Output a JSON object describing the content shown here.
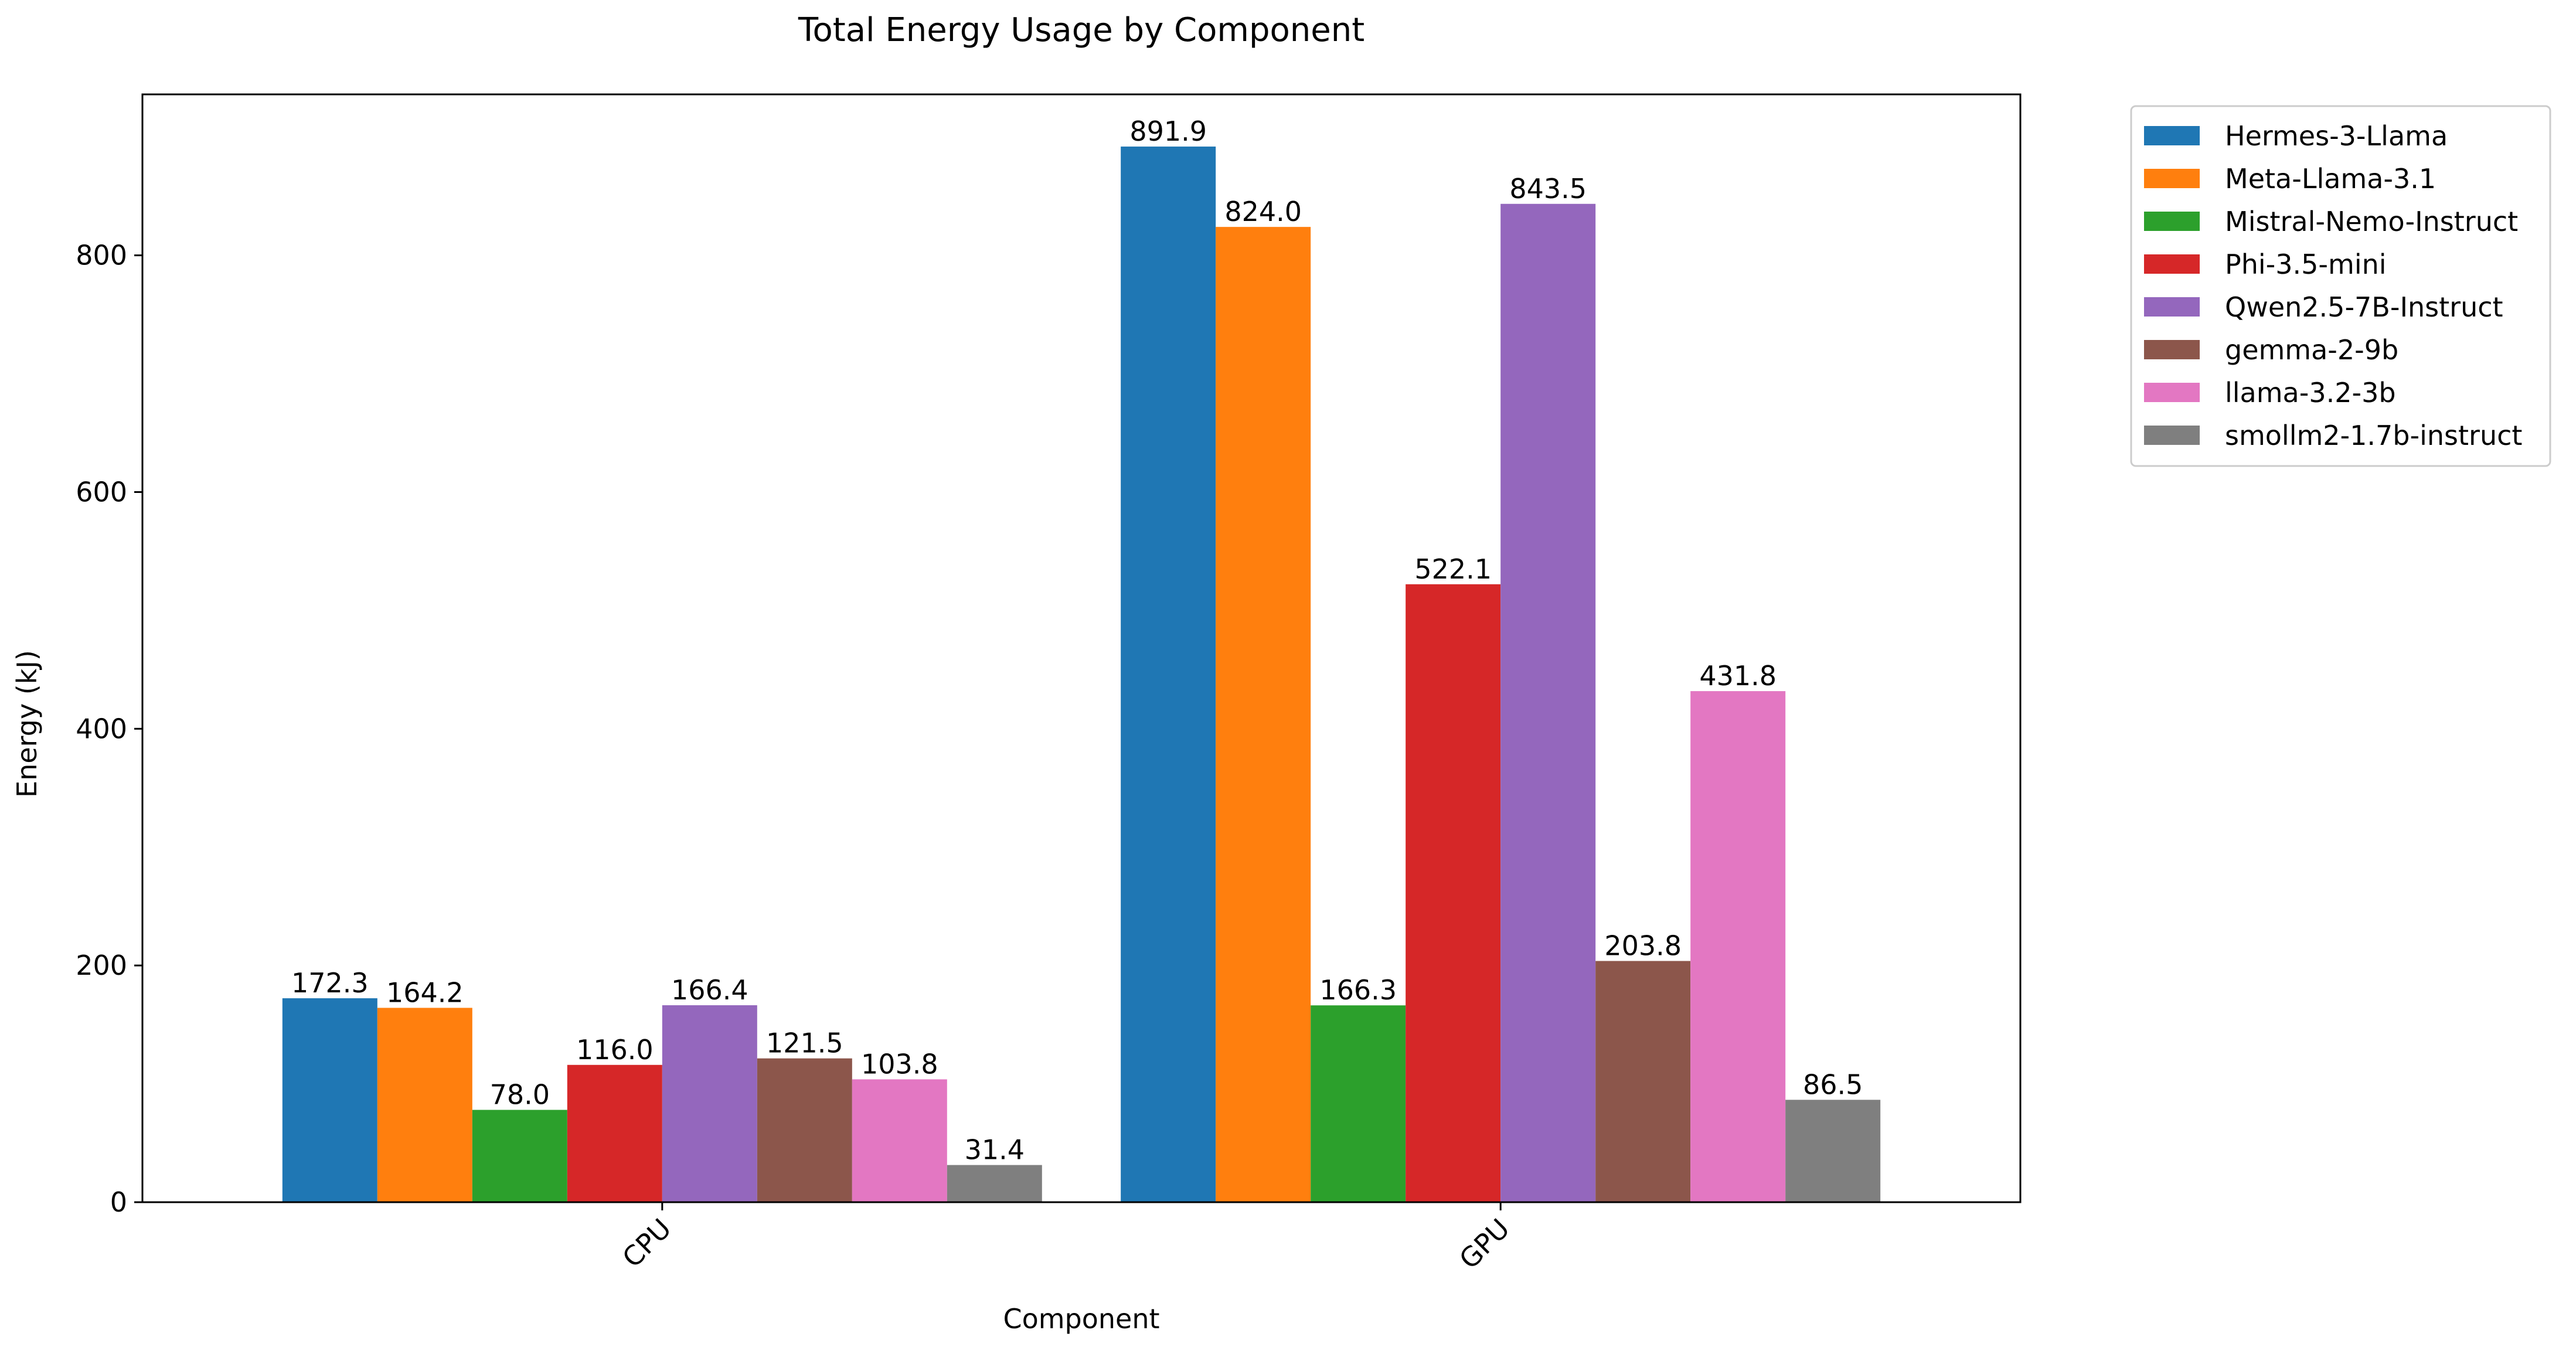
{
  "chart_data": {
    "type": "bar",
    "title": "Total Energy Usage by Component",
    "xlabel": "Component",
    "ylabel": "Energy (kJ)",
    "categories": [
      "CPU",
      "GPU"
    ],
    "ylim": [
      0,
      936
    ],
    "yticks": [
      0,
      200,
      400,
      600,
      800
    ],
    "grid": false,
    "legend_position": "outside-top-right",
    "series": [
      {
        "name": "Hermes-3-Llama",
        "color": "#1f77b4",
        "values": [
          172.3,
          891.9
        ],
        "labels": [
          "172.3",
          "891.9"
        ]
      },
      {
        "name": "Meta-Llama-3.1",
        "color": "#ff7f0e",
        "values": [
          164.2,
          824.0
        ],
        "labels": [
          "164.2",
          "824.0"
        ]
      },
      {
        "name": "Mistral-Nemo-Instruct",
        "color": "#2ca02c",
        "values": [
          78.0,
          166.3
        ],
        "labels": [
          "78.0",
          "166.3"
        ]
      },
      {
        "name": "Phi-3.5-mini",
        "color": "#d62728",
        "values": [
          116.0,
          522.1
        ],
        "labels": [
          "116.0",
          "522.1"
        ]
      },
      {
        "name": "Qwen2.5-7B-Instruct",
        "color": "#9467bd",
        "values": [
          166.4,
          843.5
        ],
        "labels": [
          "166.4",
          "843.5"
        ]
      },
      {
        "name": "gemma-2-9b",
        "color": "#8c564b",
        "values": [
          121.5,
          203.8
        ],
        "labels": [
          "121.5",
          "203.8"
        ]
      },
      {
        "name": "llama-3.2-3b",
        "color": "#e377c2",
        "values": [
          103.8,
          431.8
        ],
        "labels": [
          "103.8",
          "431.8"
        ]
      },
      {
        "name": "smollm2-1.7b-instruct",
        "color": "#7f7f7f",
        "values": [
          31.4,
          86.5
        ],
        "labels": [
          "31.4",
          "86.5"
        ]
      }
    ]
  }
}
